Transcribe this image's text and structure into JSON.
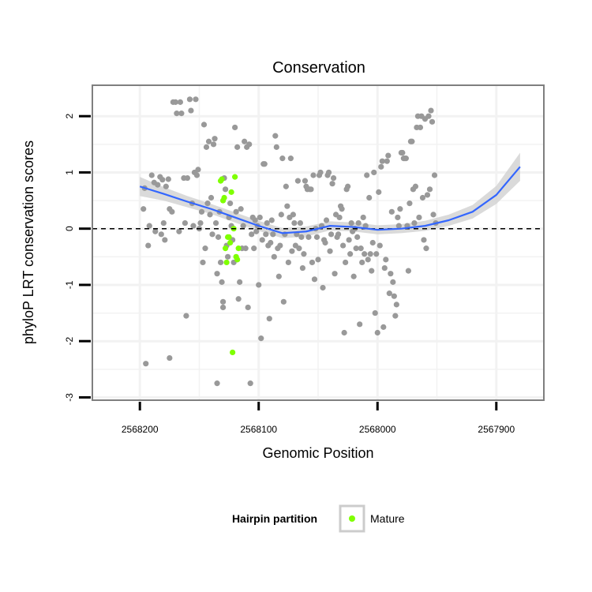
{
  "chart_data": {
    "type": "scatter",
    "title": "Conservation",
    "xlabel": "Genomic Position",
    "ylabel": "phyloP LRT conservation scores",
    "x_reversed": true,
    "xlim": [
      2568240,
      2567860
    ],
    "ylim": [
      -3.05,
      2.55
    ],
    "x_ticks": [
      2568200,
      2568100,
      2568000,
      2567900
    ],
    "x_tick_labels": [
      "2568200",
      "2568100",
      "2568000",
      "2567900"
    ],
    "y_ticks": [
      2,
      1,
      0,
      -1,
      -2,
      -3
    ],
    "y_tick_labels": [
      "2",
      "1",
      "0",
      "-1",
      "-2",
      "-3"
    ],
    "grid": true,
    "reference_line": {
      "y": 0,
      "style": "dashed",
      "color": "#000000"
    },
    "legend": {
      "title": "Hairpin partition",
      "placement": "bottom",
      "entries": [
        {
          "label": "Mature",
          "color": "#7fff00"
        }
      ]
    },
    "colors": {
      "other": "#999999",
      "mature": "#7fff00",
      "smooth": "#3366ff",
      "band": "#d3d3d3",
      "panel_border": "#7f7f7f",
      "grid": "#f2f2f2"
    },
    "smooth": {
      "x": [
        2568200,
        2568180,
        2568160,
        2568140,
        2568120,
        2568100,
        2568080,
        2568060,
        2568040,
        2568020,
        2568000,
        2567980,
        2567960,
        2567940,
        2567920,
        2567900,
        2567880
      ],
      "y": [
        0.75,
        0.62,
        0.48,
        0.35,
        0.2,
        0.05,
        -0.08,
        -0.05,
        0.05,
        0.03,
        -0.02,
        0.0,
        0.05,
        0.15,
        0.3,
        0.6,
        1.1
      ],
      "ci_halfwidth": [
        0.17,
        0.12,
        0.1,
        0.09,
        0.09,
        0.09,
        0.09,
        0.09,
        0.08,
        0.08,
        0.08,
        0.08,
        0.09,
        0.1,
        0.12,
        0.16,
        0.25
      ]
    },
    "series": [
      {
        "name": "",
        "points": [
          [
            2568197,
            0.35
          ],
          [
            2568196,
            0.72
          ],
          [
            2568195,
            -2.4
          ],
          [
            2568193,
            -0.3
          ],
          [
            2568192,
            0.05
          ],
          [
            2568190,
            0.95
          ],
          [
            2568188,
            0.82
          ],
          [
            2568187,
            -0.05
          ],
          [
            2568185,
            0.78
          ],
          [
            2568183,
            0.92
          ],
          [
            2568182,
            -0.1
          ],
          [
            2568181,
            0.87
          ],
          [
            2568180,
            0.1
          ],
          [
            2568179,
            -0.2
          ],
          [
            2568178,
            0.75
          ],
          [
            2568176,
            0.88
          ],
          [
            2568175,
            0.35
          ],
          [
            2568175,
            -2.3
          ],
          [
            2568173,
            0.3
          ],
          [
            2568172,
            2.25
          ],
          [
            2568170,
            2.25
          ],
          [
            2568169,
            2.05
          ],
          [
            2568167,
            -0.05
          ],
          [
            2568166,
            2.25
          ],
          [
            2568165,
            2.05
          ],
          [
            2568163,
            0.9
          ],
          [
            2568162,
            0.1
          ],
          [
            2568161,
            -1.55
          ],
          [
            2568160,
            0.9
          ],
          [
            2568158,
            2.3
          ],
          [
            2568157,
            2.1
          ],
          [
            2568156,
            0.45
          ],
          [
            2568155,
            0.05
          ],
          [
            2568154,
            1.0
          ],
          [
            2568153,
            2.3
          ],
          [
            2568152,
            0.95
          ],
          [
            2568151,
            1.05
          ],
          [
            2568150,
            0.0
          ],
          [
            2568149,
            0.1
          ],
          [
            2568148,
            0.3
          ],
          [
            2568147,
            -0.6
          ],
          [
            2568146,
            1.85
          ],
          [
            2568145,
            -0.35
          ],
          [
            2568144,
            1.45
          ],
          [
            2568143,
            0.45
          ],
          [
            2568142,
            1.55
          ],
          [
            2568141,
            0.25
          ],
          [
            2568140,
            0.55
          ],
          [
            2568139,
            -0.1
          ],
          [
            2568138,
            1.5
          ],
          [
            2568137,
            1.6
          ],
          [
            2568136,
            0.1
          ],
          [
            2568135,
            -0.8
          ],
          [
            2568135,
            -2.75
          ],
          [
            2568134,
            -0.15
          ],
          [
            2568133,
            0.3
          ],
          [
            2568132,
            -0.6
          ],
          [
            2568131,
            -0.95
          ],
          [
            2568130,
            -1.3
          ],
          [
            2568130,
            -1.4
          ],
          [
            2568129,
            0.9
          ],
          [
            2568128,
            0.7
          ],
          [
            2568127,
            -0.3
          ],
          [
            2568126,
            -0.5
          ],
          [
            2568125,
            0.2
          ],
          [
            2568124,
            0.45
          ],
          [
            2568123,
            0.05
          ],
          [
            2568122,
            -0.2
          ],
          [
            2568121,
            -0.6
          ],
          [
            2568120,
            1.8
          ],
          [
            2568119,
            0.3
          ],
          [
            2568118,
            1.45
          ],
          [
            2568117,
            -1.25
          ],
          [
            2568116,
            -0.95
          ],
          [
            2568115,
            0.35
          ],
          [
            2568114,
            -0.35
          ],
          [
            2568113,
            0.05
          ],
          [
            2568112,
            1.55
          ],
          [
            2568111,
            -0.35
          ],
          [
            2568110,
            1.45
          ],
          [
            2568109,
            -1.4
          ],
          [
            2568108,
            1.5
          ],
          [
            2568107,
            -2.75
          ],
          [
            2568106,
            -0.1
          ],
          [
            2568105,
            0.2
          ],
          [
            2568104,
            -0.35
          ],
          [
            2568103,
            0.15
          ],
          [
            2568102,
            -0.05
          ],
          [
            2568101,
            0.05
          ],
          [
            2568100,
            -1.0
          ],
          [
            2568099,
            0.2
          ],
          [
            2568098,
            -1.95
          ],
          [
            2568097,
            -0.2
          ],
          [
            2568096,
            1.15
          ],
          [
            2568095,
            1.15
          ],
          [
            2568094,
            -0.1
          ],
          [
            2568093,
            0.1
          ],
          [
            2568092,
            -0.3
          ],
          [
            2568091,
            -1.6
          ],
          [
            2568090,
            -0.25
          ],
          [
            2568089,
            0.15
          ],
          [
            2568088,
            -0.1
          ],
          [
            2568087,
            -0.5
          ],
          [
            2568086,
            1.65
          ],
          [
            2568085,
            1.45
          ],
          [
            2568084,
            -0.35
          ],
          [
            2568083,
            -0.85
          ],
          [
            2568082,
            -0.3
          ],
          [
            2568081,
            0.25
          ],
          [
            2568080,
            1.25
          ],
          [
            2568079,
            -1.3
          ],
          [
            2568078,
            -0.1
          ],
          [
            2568077,
            0.75
          ],
          [
            2568076,
            0.4
          ],
          [
            2568075,
            -0.6
          ],
          [
            2568074,
            0.2
          ],
          [
            2568073,
            1.25
          ],
          [
            2568072,
            -0.4
          ],
          [
            2568071,
            0.25
          ],
          [
            2568070,
            0.1
          ],
          [
            2568069,
            -0.3
          ],
          [
            2568068,
            -0.1
          ],
          [
            2568067,
            0.85
          ],
          [
            2568066,
            -0.35
          ],
          [
            2568065,
            0.1
          ],
          [
            2568064,
            -0.15
          ],
          [
            2568063,
            -0.7
          ],
          [
            2568062,
            -0.45
          ],
          [
            2568061,
            0.85
          ],
          [
            2568060,
            0.75
          ],
          [
            2568059,
            0.7
          ],
          [
            2568058,
            -0.15
          ],
          [
            2568057,
            0.7
          ],
          [
            2568056,
            0.7
          ],
          [
            2568055,
            -0.6
          ],
          [
            2568054,
            0.95
          ],
          [
            2568053,
            -0.9
          ],
          [
            2568052,
            0.0
          ],
          [
            2568051,
            -0.15
          ],
          [
            2568050,
            -0.55
          ],
          [
            2568049,
            0.95
          ],
          [
            2568048,
            1.0
          ],
          [
            2568047,
            0.05
          ],
          [
            2568046,
            -1.05
          ],
          [
            2568045,
            -0.2
          ],
          [
            2568044,
            -0.25
          ],
          [
            2568043,
            0.15
          ],
          [
            2568042,
            0.95
          ],
          [
            2568041,
            1.0
          ],
          [
            2568040,
            -0.4
          ],
          [
            2568039,
            -0.1
          ],
          [
            2568038,
            0.8
          ],
          [
            2568037,
            0.9
          ],
          [
            2568036,
            -0.8
          ],
          [
            2568035,
            0.25
          ],
          [
            2568034,
            -0.15
          ],
          [
            2568033,
            -0.1
          ],
          [
            2568032,
            0.2
          ],
          [
            2568031,
            0.4
          ],
          [
            2568030,
            0.35
          ],
          [
            2568029,
            -0.3
          ],
          [
            2568028,
            -1.85
          ],
          [
            2568027,
            -0.6
          ],
          [
            2568026,
            0.7
          ],
          [
            2568025,
            0.75
          ],
          [
            2568024,
            -0.2
          ],
          [
            2568023,
            -0.45
          ],
          [
            2568022,
            0.1
          ],
          [
            2568021,
            -0.05
          ],
          [
            2568020,
            -0.85
          ],
          [
            2568019,
            0.0
          ],
          [
            2568018,
            -0.35
          ],
          [
            2568017,
            -0.15
          ],
          [
            2568016,
            0.1
          ],
          [
            2568015,
            -1.7
          ],
          [
            2568014,
            -0.35
          ],
          [
            2568013,
            -0.6
          ],
          [
            2568012,
            0.2
          ],
          [
            2568011,
            -0.45
          ],
          [
            2568010,
            0.05
          ],
          [
            2568009,
            0.95
          ],
          [
            2568008,
            -0.55
          ],
          [
            2568007,
            0.55
          ],
          [
            2568006,
            -0.45
          ],
          [
            2568005,
            -0.75
          ],
          [
            2568004,
            -0.25
          ],
          [
            2568003,
            1.0
          ],
          [
            2568002,
            -1.5
          ],
          [
            2568001,
            -0.45
          ],
          [
            2568000,
            -1.85
          ],
          [
            2567999,
            0.65
          ],
          [
            2567998,
            -0.3
          ],
          [
            2567997,
            1.1
          ],
          [
            2567996,
            1.2
          ],
          [
            2567995,
            -1.75
          ],
          [
            2567994,
            -0.7
          ],
          [
            2567993,
            -0.55
          ],
          [
            2567992,
            1.2
          ],
          [
            2567991,
            1.3
          ],
          [
            2567990,
            -1.15
          ],
          [
            2567989,
            -0.8
          ],
          [
            2567988,
            0.3
          ],
          [
            2567987,
            -0.95
          ],
          [
            2567986,
            -1.2
          ],
          [
            2567985,
            -1.55
          ],
          [
            2567984,
            -1.35
          ],
          [
            2567983,
            0.2
          ],
          [
            2567982,
            0.05
          ],
          [
            2567981,
            0.35
          ],
          [
            2567980,
            1.35
          ],
          [
            2567979,
            1.35
          ],
          [
            2567978,
            1.25
          ],
          [
            2567977,
            1.25
          ],
          [
            2567976,
            1.25
          ],
          [
            2567975,
            0.05
          ],
          [
            2567974,
            -0.75
          ],
          [
            2567973,
            0.45
          ],
          [
            2567972,
            1.55
          ],
          [
            2567971,
            1.55
          ],
          [
            2567970,
            0.7
          ],
          [
            2567969,
            0.1
          ],
          [
            2567968,
            0.75
          ],
          [
            2567967,
            1.8
          ],
          [
            2567966,
            2.0
          ],
          [
            2567965,
            0.2
          ],
          [
            2567964,
            1.8
          ],
          [
            2567963,
            2.0
          ],
          [
            2567962,
            0.55
          ],
          [
            2567961,
            -0.2
          ],
          [
            2567960,
            1.95
          ],
          [
            2567959,
            -0.35
          ],
          [
            2567958,
            0.6
          ],
          [
            2567957,
            2.0
          ],
          [
            2567956,
            0.7
          ],
          [
            2567955,
            2.1
          ],
          [
            2567954,
            1.9
          ],
          [
            2567953,
            0.25
          ],
          [
            2567952,
            0.95
          ],
          [
            2567951,
            0.1
          ]
        ]
      },
      {
        "name": "Mature",
        "points": [
          [
            2568132,
            0.85
          ],
          [
            2568131,
            0.88
          ],
          [
            2568130,
            0.5
          ],
          [
            2568129,
            0.55
          ],
          [
            2568128,
            -0.35
          ],
          [
            2568127,
            -0.6
          ],
          [
            2568126,
            -0.15
          ],
          [
            2568125,
            -0.15
          ],
          [
            2568124,
            -0.25
          ],
          [
            2568123,
            0.65
          ],
          [
            2568122,
            -2.2
          ],
          [
            2568121,
            0.0
          ],
          [
            2568120,
            0.92
          ],
          [
            2568119,
            -0.5
          ],
          [
            2568118,
            -0.55
          ],
          [
            2568117,
            -0.35
          ]
        ]
      }
    ]
  }
}
